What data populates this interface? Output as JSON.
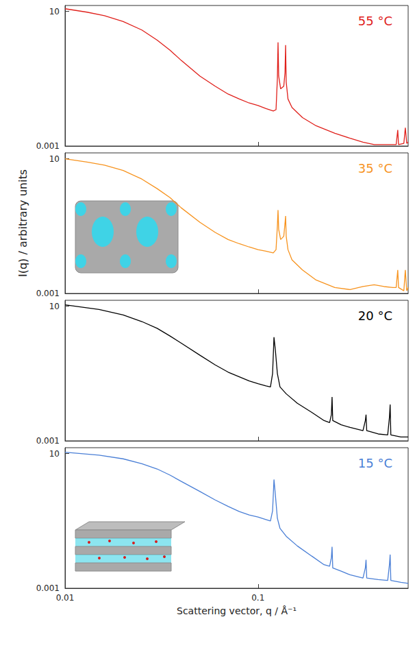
{
  "chart_data": [
    {
      "type": "line",
      "title": "55 °C",
      "color": "#e0201b",
      "log": true,
      "grid": false,
      "tick_labels": "y",
      "x": [
        0.01,
        0.013,
        0.016,
        0.02,
        0.025,
        0.03,
        0.035,
        0.04,
        0.05,
        0.06,
        0.07,
        0.08,
        0.09,
        0.1,
        0.11,
        0.12,
        0.124,
        0.126,
        0.127,
        0.128,
        0.131,
        0.136,
        0.138,
        0.139,
        0.14,
        0.143,
        0.15,
        0.17,
        0.2,
        0.25,
        0.3,
        0.35,
        0.4,
        0.45,
        0.5,
        0.52,
        0.53,
        0.535,
        0.57,
        0.58,
        0.59,
        0.6
      ],
      "values": [
        12,
        9.5,
        7.5,
        5,
        2.8,
        1.4,
        0.7,
        0.35,
        0.12,
        0.06,
        0.035,
        0.025,
        0.019,
        0.016,
        0.013,
        0.011,
        0.012,
        0.1,
        1.2,
        0.12,
        0.05,
        0.06,
        0.15,
        1.0,
        0.08,
        0.025,
        0.014,
        0.007,
        0.004,
        0.0024,
        0.0017,
        0.0013,
        0.0011,
        0.0011,
        0.0011,
        0.0011,
        0.003,
        0.0011,
        0.0012,
        0.0035,
        0.0012,
        0.0013
      ],
      "xlim": [
        0.01,
        0.6
      ],
      "xticks": [
        0.01,
        0.1
      ],
      "ylim": [
        0.001,
        15
      ],
      "yticks": [
        0.001,
        10
      ]
    },
    {
      "type": "line",
      "title": "35 °C",
      "color": "#f7931e",
      "log": true,
      "grid": false,
      "tick_labels": "y",
      "ylabel": "I(q) / arbitrary units",
      "x": [
        0.01,
        0.013,
        0.016,
        0.02,
        0.025,
        0.03,
        0.035,
        0.04,
        0.05,
        0.06,
        0.07,
        0.08,
        0.09,
        0.1,
        0.11,
        0.12,
        0.124,
        0.126,
        0.127,
        0.128,
        0.131,
        0.136,
        0.138,
        0.139,
        0.14,
        0.143,
        0.15,
        0.17,
        0.2,
        0.25,
        0.3,
        0.35,
        0.4,
        0.45,
        0.5,
        0.52,
        0.53,
        0.535,
        0.57,
        0.58,
        0.59,
        0.6
      ],
      "values": [
        10,
        8,
        6.5,
        4.5,
        2.5,
        1.3,
        0.7,
        0.35,
        0.13,
        0.065,
        0.04,
        0.03,
        0.024,
        0.02,
        0.018,
        0.016,
        0.02,
        0.1,
        0.3,
        0.08,
        0.04,
        0.05,
        0.12,
        0.2,
        0.05,
        0.02,
        0.01,
        0.005,
        0.0025,
        0.0015,
        0.0013,
        0.0016,
        0.0018,
        0.0016,
        0.0015,
        0.0015,
        0.005,
        0.0015,
        0.0012,
        0.005,
        0.0012,
        0.0015
      ],
      "xlim": [
        0.01,
        0.6
      ],
      "xticks": [
        0.01,
        0.1
      ],
      "ylim": [
        0.001,
        15
      ],
      "yticks": [
        0.001,
        10
      ]
    },
    {
      "type": "line",
      "title": "20 °C",
      "color": "#000000",
      "log": true,
      "grid": false,
      "tick_labels": "y",
      "x": [
        0.01,
        0.015,
        0.02,
        0.025,
        0.03,
        0.035,
        0.04,
        0.05,
        0.06,
        0.07,
        0.08,
        0.09,
        0.1,
        0.11,
        0.116,
        0.119,
        0.121,
        0.123,
        0.126,
        0.13,
        0.14,
        0.16,
        0.19,
        0.22,
        0.235,
        0.24,
        0.242,
        0.244,
        0.27,
        0.3,
        0.35,
        0.36,
        0.363,
        0.366,
        0.42,
        0.47,
        0.48,
        0.484,
        0.488,
        0.55,
        0.6
      ],
      "values": [
        11,
        8,
        5.5,
        3.5,
        2.2,
        1.3,
        0.8,
        0.35,
        0.18,
        0.11,
        0.08,
        0.06,
        0.05,
        0.043,
        0.04,
        0.1,
        1.2,
        0.5,
        0.1,
        0.04,
        0.025,
        0.013,
        0.007,
        0.004,
        0.0035,
        0.006,
        0.02,
        0.004,
        0.003,
        0.0025,
        0.002,
        0.004,
        0.006,
        0.002,
        0.0016,
        0.0015,
        0.005,
        0.012,
        0.0015,
        0.0013,
        0.0013
      ],
      "xlim": [
        0.01,
        0.6
      ],
      "xticks": [
        0.01,
        0.1
      ],
      "ylim": [
        0.001,
        15
      ],
      "yticks": [
        0.001,
        10
      ]
    },
    {
      "type": "line",
      "title": "15 °C",
      "color": "#4a7fd6",
      "log": true,
      "grid": false,
      "xlabel": "Scattering vector, q / Å⁻¹",
      "x": [
        0.01,
        0.015,
        0.02,
        0.025,
        0.03,
        0.035,
        0.04,
        0.05,
        0.06,
        0.07,
        0.08,
        0.09,
        0.1,
        0.11,
        0.116,
        0.119,
        0.121,
        0.123,
        0.126,
        0.13,
        0.14,
        0.16,
        0.19,
        0.22,
        0.235,
        0.24,
        0.242,
        0.244,
        0.27,
        0.3,
        0.35,
        0.36,
        0.363,
        0.366,
        0.42,
        0.47,
        0.48,
        0.484,
        0.488,
        0.55,
        0.6
      ],
      "values": [
        11,
        9,
        7,
        5,
        3.5,
        2.3,
        1.5,
        0.75,
        0.42,
        0.27,
        0.19,
        0.15,
        0.13,
        0.11,
        0.1,
        0.2,
        1.7,
        0.6,
        0.12,
        0.06,
        0.035,
        0.018,
        0.009,
        0.005,
        0.0045,
        0.008,
        0.017,
        0.004,
        0.0032,
        0.0025,
        0.002,
        0.004,
        0.007,
        0.002,
        0.0018,
        0.0017,
        0.005,
        0.01,
        0.0017,
        0.0015,
        0.0014
      ],
      "xlim": [
        0.01,
        0.6
      ],
      "xticks": [
        0.01,
        0.1
      ],
      "ylim": [
        0.001,
        15
      ],
      "yticks": [
        0.001,
        10
      ]
    }
  ]
}
